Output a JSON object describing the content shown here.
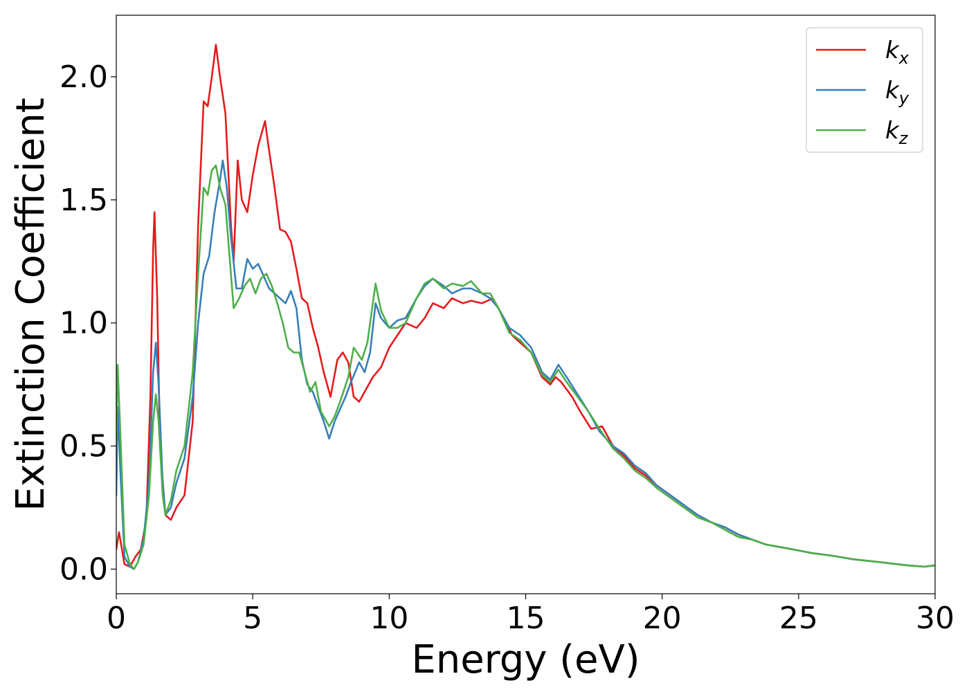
{
  "chart_data": {
    "type": "line",
    "title": "",
    "xlabel": "Energy (eV)",
    "ylabel": "Extinction Coefficient",
    "xlim": [
      0,
      30
    ],
    "ylim": [
      -0.1,
      2.25
    ],
    "xticks": [
      0,
      5,
      10,
      15,
      20,
      25,
      30
    ],
    "xtick_labels": [
      "0",
      "5",
      "10",
      "15",
      "20",
      "25",
      "30"
    ],
    "yticks": [
      0.0,
      0.5,
      1.0,
      1.5,
      2.0
    ],
    "ytick_labels": [
      "0.0",
      "0.5",
      "1.0",
      "1.5",
      "2.0"
    ],
    "grid": false,
    "legend_position": "top-right",
    "series": [
      {
        "name": "k",
        "subscript": "x",
        "color": "#e41a1c",
        "points": [
          [
            0,
            0.08
          ],
          [
            0.1,
            0.15
          ],
          [
            0.3,
            0.02
          ],
          [
            0.5,
            0.01
          ],
          [
            0.7,
            0.05
          ],
          [
            0.9,
            0.08
          ],
          [
            1.1,
            0.2
          ],
          [
            1.25,
            0.7
          ],
          [
            1.35,
            1.3
          ],
          [
            1.4,
            1.45
          ],
          [
            1.5,
            1.1
          ],
          [
            1.6,
            0.5
          ],
          [
            1.8,
            0.22
          ],
          [
            2.0,
            0.2
          ],
          [
            2.2,
            0.25
          ],
          [
            2.5,
            0.3
          ],
          [
            2.8,
            0.6
          ],
          [
            3.0,
            1.4
          ],
          [
            3.2,
            1.9
          ],
          [
            3.35,
            1.88
          ],
          [
            3.5,
            2.0
          ],
          [
            3.65,
            2.13
          ],
          [
            3.8,
            2.0
          ],
          [
            4.0,
            1.85
          ],
          [
            4.2,
            1.4
          ],
          [
            4.3,
            1.25
          ],
          [
            4.45,
            1.66
          ],
          [
            4.6,
            1.5
          ],
          [
            4.8,
            1.45
          ],
          [
            5.0,
            1.6
          ],
          [
            5.2,
            1.72
          ],
          [
            5.45,
            1.82
          ],
          [
            5.6,
            1.7
          ],
          [
            5.8,
            1.55
          ],
          [
            6.0,
            1.38
          ],
          [
            6.2,
            1.37
          ],
          [
            6.4,
            1.33
          ],
          [
            6.6,
            1.22
          ],
          [
            6.8,
            1.1
          ],
          [
            7.0,
            1.08
          ],
          [
            7.2,
            0.98
          ],
          [
            7.4,
            0.9
          ],
          [
            7.6,
            0.8
          ],
          [
            7.85,
            0.7
          ],
          [
            8.1,
            0.85
          ],
          [
            8.3,
            0.88
          ],
          [
            8.5,
            0.84
          ],
          [
            8.7,
            0.7
          ],
          [
            8.9,
            0.68
          ],
          [
            9.1,
            0.72
          ],
          [
            9.4,
            0.78
          ],
          [
            9.7,
            0.82
          ],
          [
            10.0,
            0.9
          ],
          [
            10.3,
            0.95
          ],
          [
            10.6,
            1.0
          ],
          [
            11.0,
            0.98
          ],
          [
            11.3,
            1.02
          ],
          [
            11.6,
            1.08
          ],
          [
            12.0,
            1.06
          ],
          [
            12.3,
            1.1
          ],
          [
            12.7,
            1.08
          ],
          [
            13.0,
            1.09
          ],
          [
            13.4,
            1.08
          ],
          [
            13.8,
            1.1
          ],
          [
            14.2,
            1.02
          ],
          [
            14.5,
            0.95
          ],
          [
            14.8,
            0.92
          ],
          [
            15.2,
            0.88
          ],
          [
            15.6,
            0.78
          ],
          [
            15.9,
            0.75
          ],
          [
            16.1,
            0.78
          ],
          [
            16.3,
            0.76
          ],
          [
            16.7,
            0.7
          ],
          [
            17.0,
            0.64
          ],
          [
            17.4,
            0.57
          ],
          [
            17.8,
            0.58
          ],
          [
            18.2,
            0.5
          ],
          [
            18.6,
            0.46
          ],
          [
            19.0,
            0.41
          ],
          [
            19.4,
            0.38
          ],
          [
            19.8,
            0.34
          ],
          [
            20.3,
            0.3
          ],
          [
            20.8,
            0.26
          ],
          [
            21.3,
            0.22
          ],
          [
            21.8,
            0.19
          ],
          [
            22.3,
            0.17
          ],
          [
            22.8,
            0.14
          ],
          [
            23.3,
            0.12
          ],
          [
            23.8,
            0.1
          ],
          [
            24.3,
            0.09
          ],
          [
            24.8,
            0.08
          ],
          [
            25.5,
            0.065
          ],
          [
            26.2,
            0.055
          ],
          [
            27.0,
            0.04
          ],
          [
            28.0,
            0.028
          ],
          [
            29.0,
            0.015
          ],
          [
            29.6,
            0.01
          ],
          [
            30,
            0.015
          ]
        ]
      },
      {
        "name": "k",
        "subscript": "y",
        "color": "#377eb8",
        "points": [
          [
            0,
            0.3
          ],
          [
            0.05,
            0.66
          ],
          [
            0.15,
            0.4
          ],
          [
            0.3,
            0.05
          ],
          [
            0.5,
            0.01
          ],
          [
            0.65,
            0.0
          ],
          [
            0.8,
            0.03
          ],
          [
            1.0,
            0.12
          ],
          [
            1.2,
            0.35
          ],
          [
            1.35,
            0.8
          ],
          [
            1.45,
            0.92
          ],
          [
            1.55,
            0.75
          ],
          [
            1.7,
            0.35
          ],
          [
            1.8,
            0.22
          ],
          [
            2.0,
            0.25
          ],
          [
            2.2,
            0.35
          ],
          [
            2.5,
            0.45
          ],
          [
            2.8,
            0.7
          ],
          [
            3.0,
            1.0
          ],
          [
            3.2,
            1.2
          ],
          [
            3.4,
            1.27
          ],
          [
            3.6,
            1.45
          ],
          [
            3.8,
            1.58
          ],
          [
            3.9,
            1.66
          ],
          [
            4.05,
            1.55
          ],
          [
            4.2,
            1.35
          ],
          [
            4.4,
            1.14
          ],
          [
            4.6,
            1.14
          ],
          [
            4.8,
            1.26
          ],
          [
            5.0,
            1.22
          ],
          [
            5.2,
            1.24
          ],
          [
            5.4,
            1.19
          ],
          [
            5.6,
            1.14
          ],
          [
            5.8,
            1.12
          ],
          [
            6.0,
            1.1
          ],
          [
            6.2,
            1.08
          ],
          [
            6.4,
            1.13
          ],
          [
            6.6,
            1.06
          ],
          [
            6.8,
            0.85
          ],
          [
            7.0,
            0.75
          ],
          [
            7.2,
            0.72
          ],
          [
            7.4,
            0.66
          ],
          [
            7.6,
            0.6
          ],
          [
            7.8,
            0.53
          ],
          [
            8.0,
            0.6
          ],
          [
            8.2,
            0.65
          ],
          [
            8.4,
            0.7
          ],
          [
            8.6,
            0.76
          ],
          [
            8.9,
            0.84
          ],
          [
            9.1,
            0.8
          ],
          [
            9.3,
            0.88
          ],
          [
            9.5,
            1.08
          ],
          [
            9.7,
            1.02
          ],
          [
            10.0,
            0.98
          ],
          [
            10.3,
            1.01
          ],
          [
            10.6,
            1.02
          ],
          [
            11.0,
            1.1
          ],
          [
            11.3,
            1.15
          ],
          [
            11.6,
            1.18
          ],
          [
            12.0,
            1.15
          ],
          [
            12.3,
            1.12
          ],
          [
            12.7,
            1.14
          ],
          [
            13.0,
            1.14
          ],
          [
            13.4,
            1.12
          ],
          [
            13.7,
            1.1
          ],
          [
            14.0,
            1.06
          ],
          [
            14.4,
            0.98
          ],
          [
            14.8,
            0.95
          ],
          [
            15.2,
            0.9
          ],
          [
            15.6,
            0.8
          ],
          [
            15.9,
            0.77
          ],
          [
            16.2,
            0.83
          ],
          [
            16.5,
            0.78
          ],
          [
            16.9,
            0.71
          ],
          [
            17.3,
            0.64
          ],
          [
            17.7,
            0.56
          ],
          [
            18.2,
            0.5
          ],
          [
            18.6,
            0.47
          ],
          [
            19.0,
            0.42
          ],
          [
            19.4,
            0.39
          ],
          [
            19.8,
            0.34
          ],
          [
            20.3,
            0.3
          ],
          [
            20.8,
            0.26
          ],
          [
            21.3,
            0.22
          ],
          [
            21.8,
            0.19
          ],
          [
            22.3,
            0.17
          ],
          [
            22.8,
            0.14
          ],
          [
            23.3,
            0.12
          ],
          [
            23.8,
            0.1
          ],
          [
            24.3,
            0.09
          ],
          [
            24.8,
            0.08
          ],
          [
            25.5,
            0.065
          ],
          [
            26.2,
            0.055
          ],
          [
            27.0,
            0.04
          ],
          [
            28.0,
            0.028
          ],
          [
            29.0,
            0.015
          ],
          [
            29.6,
            0.01
          ],
          [
            30,
            0.015
          ]
        ]
      },
      {
        "name": "k",
        "subscript": "z",
        "color": "#4daf4a",
        "points": [
          [
            0,
            0.5
          ],
          [
            0.05,
            0.83
          ],
          [
            0.15,
            0.55
          ],
          [
            0.3,
            0.1
          ],
          [
            0.5,
            0.02
          ],
          [
            0.65,
            0.0
          ],
          [
            0.8,
            0.03
          ],
          [
            1.0,
            0.1
          ],
          [
            1.2,
            0.3
          ],
          [
            1.35,
            0.6
          ],
          [
            1.45,
            0.71
          ],
          [
            1.55,
            0.6
          ],
          [
            1.7,
            0.3
          ],
          [
            1.8,
            0.22
          ],
          [
            2.0,
            0.28
          ],
          [
            2.2,
            0.4
          ],
          [
            2.5,
            0.5
          ],
          [
            2.8,
            0.8
          ],
          [
            3.0,
            1.2
          ],
          [
            3.2,
            1.55
          ],
          [
            3.35,
            1.52
          ],
          [
            3.5,
            1.62
          ],
          [
            3.65,
            1.64
          ],
          [
            3.8,
            1.55
          ],
          [
            4.0,
            1.48
          ],
          [
            4.2,
            1.2
          ],
          [
            4.3,
            1.06
          ],
          [
            4.5,
            1.1
          ],
          [
            4.7,
            1.15
          ],
          [
            4.9,
            1.18
          ],
          [
            5.1,
            1.12
          ],
          [
            5.3,
            1.18
          ],
          [
            5.5,
            1.2
          ],
          [
            5.7,
            1.15
          ],
          [
            5.9,
            1.08
          ],
          [
            6.1,
            1.0
          ],
          [
            6.3,
            0.9
          ],
          [
            6.5,
            0.88
          ],
          [
            6.7,
            0.88
          ],
          [
            6.9,
            0.8
          ],
          [
            7.1,
            0.72
          ],
          [
            7.3,
            0.76
          ],
          [
            7.5,
            0.64
          ],
          [
            7.8,
            0.58
          ],
          [
            8.0,
            0.62
          ],
          [
            8.2,
            0.68
          ],
          [
            8.5,
            0.78
          ],
          [
            8.7,
            0.9
          ],
          [
            9.0,
            0.85
          ],
          [
            9.2,
            0.92
          ],
          [
            9.5,
            1.16
          ],
          [
            9.7,
            1.05
          ],
          [
            10.0,
            0.98
          ],
          [
            10.3,
            0.98
          ],
          [
            10.6,
            1.0
          ],
          [
            11.0,
            1.1
          ],
          [
            11.3,
            1.16
          ],
          [
            11.6,
            1.18
          ],
          [
            12.0,
            1.14
          ],
          [
            12.3,
            1.16
          ],
          [
            12.7,
            1.15
          ],
          [
            13.0,
            1.17
          ],
          [
            13.4,
            1.12
          ],
          [
            13.7,
            1.12
          ],
          [
            14.0,
            1.06
          ],
          [
            14.4,
            0.96
          ],
          [
            14.8,
            0.93
          ],
          [
            15.2,
            0.88
          ],
          [
            15.6,
            0.79
          ],
          [
            15.9,
            0.76
          ],
          [
            16.2,
            0.81
          ],
          [
            16.5,
            0.76
          ],
          [
            16.9,
            0.7
          ],
          [
            17.3,
            0.64
          ],
          [
            17.7,
            0.57
          ],
          [
            18.2,
            0.49
          ],
          [
            18.6,
            0.45
          ],
          [
            19.0,
            0.4
          ],
          [
            19.4,
            0.37
          ],
          [
            19.8,
            0.33
          ],
          [
            20.3,
            0.29
          ],
          [
            20.8,
            0.25
          ],
          [
            21.3,
            0.21
          ],
          [
            21.8,
            0.19
          ],
          [
            22.3,
            0.16
          ],
          [
            22.8,
            0.13
          ],
          [
            23.3,
            0.12
          ],
          [
            23.8,
            0.1
          ],
          [
            24.3,
            0.09
          ],
          [
            24.8,
            0.08
          ],
          [
            25.5,
            0.065
          ],
          [
            26.2,
            0.055
          ],
          [
            27.0,
            0.04
          ],
          [
            28.0,
            0.028
          ],
          [
            29.0,
            0.015
          ],
          [
            29.6,
            0.01
          ],
          [
            30,
            0.015
          ]
        ]
      }
    ]
  }
}
